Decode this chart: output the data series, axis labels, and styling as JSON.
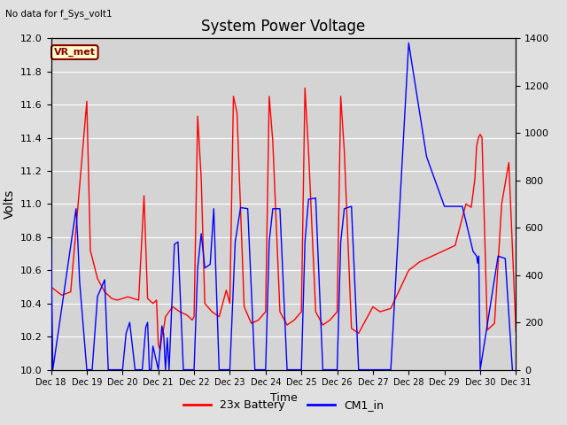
{
  "title": "System Power Voltage",
  "top_left_text": "No data for f_Sys_volt1",
  "annotation_text": "VR_met",
  "ylabel_left": "Volts",
  "xlabel": "Time",
  "ylim_left": [
    10.0,
    12.0
  ],
  "ylim_right": [
    0,
    1400
  ],
  "background_color": "#e0e0e0",
  "plot_bg_color": "#d4d4d4",
  "grid_color": "#ffffff",
  "xtick_labels": [
    "Dec 18",
    "Dec 19",
    "Dec 20",
    "Dec 21",
    "Dec 22",
    "Dec 23",
    "Dec 24",
    "Dec 25",
    "Dec 26",
    "Dec 27",
    "Dec 28",
    "Dec 29",
    "Dec 30",
    "Dec 31"
  ],
  "red_series_label": "23x Battery",
  "blue_series_label": "CM1_in",
  "red_x": [
    18.0,
    18.3,
    18.55,
    19.0,
    19.1,
    19.3,
    19.5,
    19.7,
    19.85,
    20.0,
    20.15,
    20.3,
    20.45,
    20.6,
    20.65,
    20.7,
    20.75,
    20.85,
    20.95,
    21.0,
    21.05,
    21.1,
    21.15,
    21.2,
    21.4,
    21.6,
    21.8,
    21.95,
    22.0,
    22.1,
    22.2,
    22.3,
    22.5,
    22.7,
    22.9,
    23.0,
    23.1,
    23.2,
    23.4,
    23.6,
    23.8,
    24.0,
    24.1,
    24.2,
    24.4,
    24.6,
    24.8,
    25.0,
    25.1,
    25.2,
    25.4,
    25.6,
    25.8,
    26.0,
    26.1,
    26.2,
    26.4,
    26.6,
    26.8,
    27.0,
    27.2,
    27.5,
    28.0,
    28.3,
    28.6,
    29.0,
    29.3,
    29.6,
    29.75,
    29.85,
    29.9,
    29.95,
    30.0,
    30.05,
    30.2,
    30.4,
    30.6,
    30.8,
    31.0
  ],
  "red_y": [
    10.5,
    10.45,
    10.47,
    11.62,
    10.72,
    10.55,
    10.47,
    10.43,
    10.42,
    10.43,
    10.44,
    10.43,
    10.42,
    11.05,
    10.74,
    10.43,
    10.42,
    10.4,
    10.42,
    10.15,
    10.12,
    10.2,
    10.25,
    10.32,
    10.38,
    10.35,
    10.33,
    10.3,
    10.32,
    11.53,
    11.15,
    10.4,
    10.35,
    10.32,
    10.48,
    10.4,
    11.65,
    11.55,
    10.38,
    10.28,
    10.3,
    10.35,
    11.65,
    11.38,
    10.35,
    10.27,
    10.3,
    10.35,
    11.7,
    11.32,
    10.35,
    10.27,
    10.3,
    10.35,
    11.65,
    11.32,
    10.25,
    10.22,
    10.3,
    10.38,
    10.35,
    10.37,
    10.6,
    10.65,
    10.68,
    10.72,
    10.75,
    11.0,
    10.98,
    11.15,
    11.35,
    11.4,
    11.42,
    11.4,
    10.24,
    10.28,
    11.0,
    11.25,
    10.23
  ],
  "blue_x": [
    18.0,
    18.05,
    18.7,
    18.75,
    18.8,
    19.0,
    19.15,
    19.3,
    19.5,
    19.6,
    19.75,
    20.0,
    20.1,
    20.2,
    20.35,
    20.55,
    20.65,
    20.7,
    20.75,
    20.8,
    20.85,
    21.0,
    21.1,
    21.15,
    21.2,
    21.25,
    21.3,
    21.45,
    21.55,
    21.7,
    22.0,
    22.1,
    22.2,
    22.3,
    22.45,
    22.55,
    22.7,
    22.9,
    23.0,
    23.15,
    23.3,
    23.5,
    23.7,
    23.9,
    24.0,
    24.1,
    24.2,
    24.4,
    24.6,
    24.8,
    25.0,
    25.1,
    25.2,
    25.4,
    25.6,
    25.8,
    26.0,
    26.1,
    26.2,
    26.4,
    26.6,
    26.8,
    27.0,
    27.1,
    27.5,
    28.0,
    28.5,
    29.0,
    29.5,
    29.8,
    29.85,
    29.9,
    29.93,
    29.96,
    30.0,
    30.5,
    30.7,
    30.9
  ],
  "blue_y": [
    540,
    0,
    680,
    540,
    370,
    0,
    0,
    310,
    380,
    0,
    0,
    0,
    155,
    200,
    0,
    0,
    180,
    200,
    0,
    0,
    100,
    0,
    185,
    150,
    0,
    135,
    0,
    530,
    540,
    0,
    0,
    430,
    575,
    430,
    445,
    680,
    0,
    0,
    0,
    540,
    685,
    680,
    0,
    0,
    0,
    540,
    680,
    680,
    0,
    0,
    0,
    540,
    720,
    725,
    0,
    0,
    0,
    540,
    680,
    690,
    0,
    0,
    0,
    0,
    0,
    1380,
    900,
    690,
    690,
    500,
    490,
    480,
    450,
    480,
    0,
    480,
    470,
    0
  ]
}
